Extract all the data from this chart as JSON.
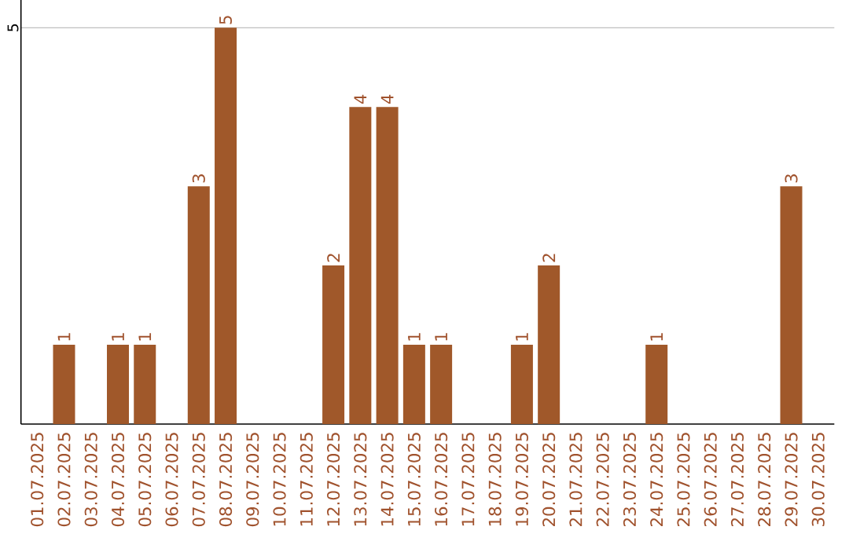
{
  "chart_data": {
    "type": "bar",
    "categories": [
      "01.07.2025",
      "02.07.2025",
      "03.07.2025",
      "04.07.2025",
      "05.07.2025",
      "06.07.2025",
      "07.07.2025",
      "08.07.2025",
      "09.07.2025",
      "10.07.2025",
      "11.07.2025",
      "12.07.2025",
      "13.07.2025",
      "14.07.2025",
      "15.07.2025",
      "16.07.2025",
      "17.07.2025",
      "18.07.2025",
      "19.07.2025",
      "20.07.2025",
      "21.07.2025",
      "22.07.2025",
      "23.07.2025",
      "24.07.2025",
      "25.07.2025",
      "26.07.2025",
      "27.07.2025",
      "28.07.2025",
      "29.07.2025",
      "30.07.2025"
    ],
    "values": [
      null,
      1,
      null,
      1,
      1,
      null,
      3,
      5,
      null,
      null,
      null,
      2,
      4,
      4,
      1,
      1,
      null,
      null,
      1,
      2,
      null,
      null,
      null,
      1,
      null,
      null,
      null,
      null,
      3,
      null
    ],
    "color": "#a0582a",
    "ylim": [
      0,
      5.35
    ],
    "yticks": [
      5
    ],
    "grid": "y",
    "data_labels": true
  }
}
